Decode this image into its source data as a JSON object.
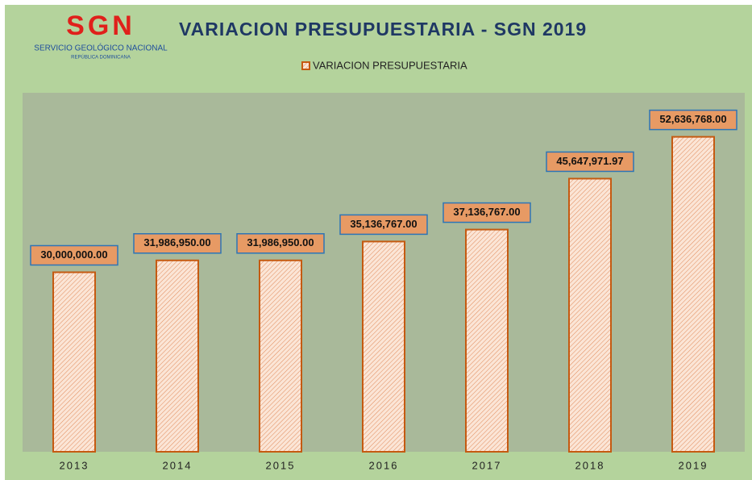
{
  "logo": {
    "text": "SGN",
    "name": "SERVICIO GEOLÓGICO NACIONAL",
    "country": "REPÚBLICA DOMINICANA"
  },
  "chart_data": {
    "type": "bar",
    "title": "VARIACION PRESUPUESTARIA - SGN 2019",
    "series": [
      {
        "name": "VARIACION PRESUPUESTARIA",
        "color": "#c55a11",
        "values": [
          30000000,
          31986950,
          31986950,
          35136767,
          37136767,
          45647971.97,
          52636768
        ],
        "value_labels": [
          "30,000,000.00",
          "31,986,950.00",
          "31,986,950.00",
          "35,136,767.00",
          "37,136,767.00",
          "45,647,971.97",
          "52,636,768.00"
        ]
      }
    ],
    "categories": [
      "2013",
      "2014",
      "2015",
      "2016",
      "2017",
      "2018",
      "2019"
    ],
    "ylim": [
      0,
      60000000
    ]
  }
}
